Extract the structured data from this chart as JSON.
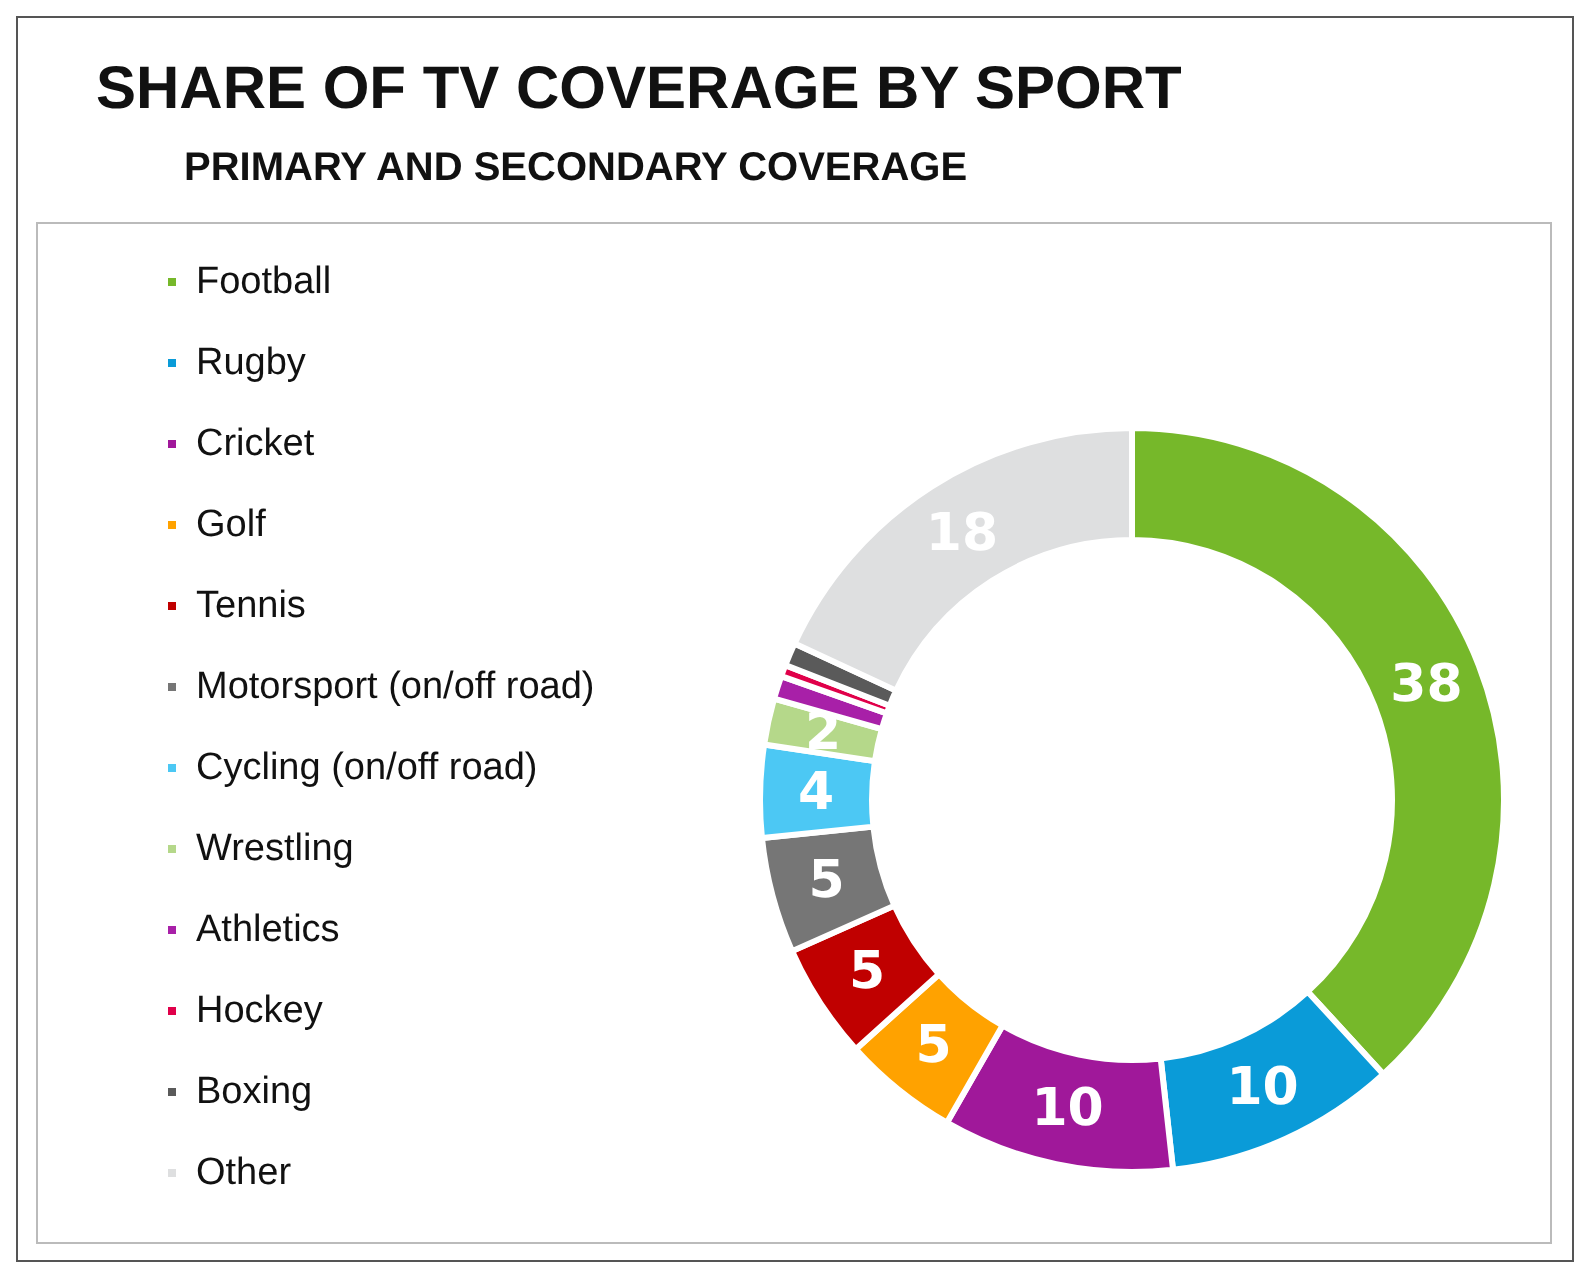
{
  "chart_data": {
    "type": "donut",
    "title": "SHARE OF TV COVERAGE BY SPORT",
    "subtitle": "PRIMARY AND SECONDARY COVERAGE",
    "categories": [
      "Football",
      "Rugby",
      "Cricket",
      "Golf",
      "Tennis",
      "Motorsport (on/off road)",
      "Cycling (on/off road)",
      "Wrestling",
      "Athletics",
      "Hockey",
      "Boxing",
      "Other"
    ],
    "values": [
      38,
      10,
      10,
      5,
      5,
      5,
      4,
      2,
      1,
      0.5,
      1,
      18
    ],
    "colors": [
      "#76b82a",
      "#0a9bd8",
      "#a0189a",
      "#ffa200",
      "#c00000",
      "#767676",
      "#4cc8f4",
      "#b5d88a",
      "#a820a8",
      "#e0004a",
      "#5a5a5a",
      "#dedfe0"
    ],
    "value_labels": [
      "38",
      "10",
      "10",
      "5",
      "5",
      "5",
      "4",
      "2",
      null,
      null,
      null,
      "18"
    ],
    "legend": "left"
  }
}
